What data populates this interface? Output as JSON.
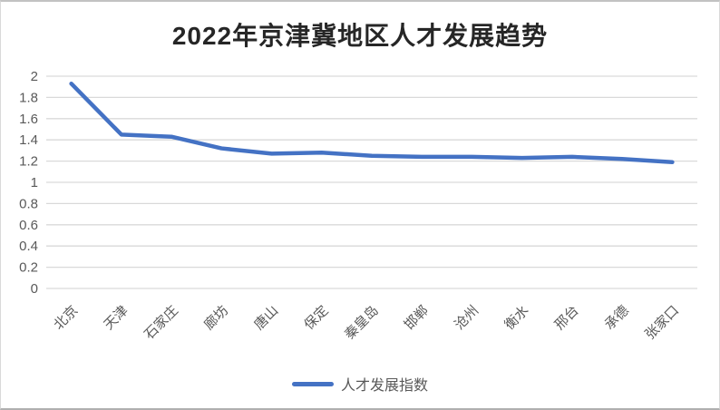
{
  "frame": {
    "background": "#ffffff",
    "border_color": "#d9d9d9"
  },
  "chart_data": {
    "type": "line",
    "title": "2022年京津冀地区人才发展趋势",
    "categories": [
      "北京",
      "天津",
      "石家庄",
      "廊坊",
      "唐山",
      "保定",
      "秦皇岛",
      "邯郸",
      "沧州",
      "衡水",
      "邢台",
      "承德",
      "张家口"
    ],
    "series": [
      {
        "name": "人才发展指数",
        "color": "#4472C4",
        "values": [
          1.93,
          1.45,
          1.43,
          1.32,
          1.27,
          1.28,
          1.25,
          1.24,
          1.24,
          1.23,
          1.24,
          1.22,
          1.19
        ]
      }
    ],
    "xlabel": "",
    "ylabel": "",
    "ylim": [
      0,
      2
    ],
    "ytick_labels": [
      "2",
      "1.8",
      "1.6",
      "1.4",
      "1.2",
      "1",
      "0.8",
      "0.6",
      "0.4",
      "0.2",
      "0"
    ],
    "grid": true,
    "gridline_color": "#d9d9d9",
    "tick_label_color": "#595959",
    "title_color": "#262626",
    "legend_position": "bottom",
    "x_label_rotation_deg": 45
  }
}
